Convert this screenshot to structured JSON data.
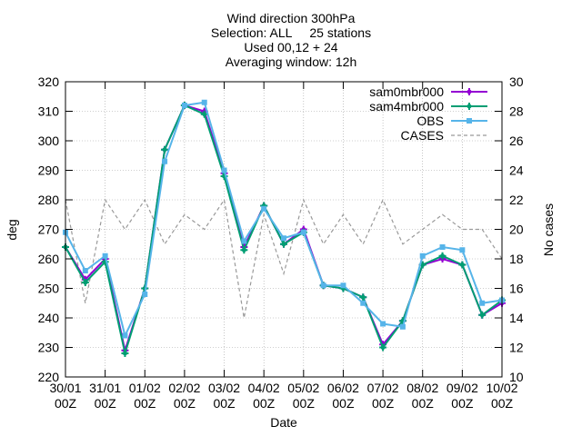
{
  "chart_data": {
    "type": "line",
    "title": [
      "Wind direction 300hPa",
      "Selection: ALL     25 stations",
      "Used 00,12 + 24",
      "Averaging window: 12h"
    ],
    "xlabel": "Date",
    "ylabel": "deg",
    "y2label": "No cases",
    "ylim": [
      220,
      320
    ],
    "y2lim": [
      10,
      30
    ],
    "yticks": [
      220,
      230,
      240,
      250,
      260,
      270,
      280,
      290,
      300,
      310,
      320
    ],
    "y2ticks": [
      10,
      12,
      14,
      16,
      18,
      20,
      22,
      24,
      26,
      28,
      30
    ],
    "xticks": [
      {
        "day": 0,
        "line1": "30/01",
        "line2": "00Z"
      },
      {
        "day": 1,
        "line1": "31/01",
        "line2": "00Z"
      },
      {
        "day": 2,
        "line1": "01/02",
        "line2": "00Z"
      },
      {
        "day": 3,
        "line1": "02/02",
        "line2": "00Z"
      },
      {
        "day": 4,
        "line1": "03/02",
        "line2": "00Z"
      },
      {
        "day": 5,
        "line1": "04/02",
        "line2": "00Z"
      },
      {
        "day": 6,
        "line1": "05/02",
        "line2": "00Z"
      },
      {
        "day": 7,
        "line1": "06/02",
        "line2": "00Z"
      },
      {
        "day": 8,
        "line1": "07/02",
        "line2": "00Z"
      },
      {
        "day": 9,
        "line1": "08/02",
        "line2": "00Z"
      },
      {
        "day": 10,
        "line1": "09/02",
        "line2": "00Z"
      },
      {
        "day": 11,
        "line1": "10/02",
        "line2": "00Z"
      }
    ],
    "grid": true,
    "legend_position": "top-right",
    "x": [
      0,
      0.5,
      1,
      1.5,
      2,
      2.5,
      3,
      3.5,
      4,
      4.5,
      5,
      5.5,
      6,
      6.5,
      7,
      7.5,
      8,
      8.5,
      9,
      9.5,
      10,
      10.5,
      11
    ],
    "series": [
      {
        "name": "sam0mbr000",
        "color": "#9400d3",
        "axis": "y",
        "marker": "plus",
        "dash": false,
        "values": [
          264,
          253,
          260,
          229,
          250,
          297,
          312,
          310,
          289,
          264,
          278,
          265,
          270,
          251,
          250,
          247,
          231,
          239,
          258,
          260,
          258,
          241,
          245
        ]
      },
      {
        "name": "sam4mbr000",
        "color": "#009e73",
        "axis": "y",
        "marker": "plus",
        "dash": false,
        "values": [
          264,
          252,
          259,
          228,
          250,
          297,
          312,
          309,
          288,
          263,
          278,
          265,
          269,
          251,
          250,
          247,
          230,
          239,
          258,
          261,
          258,
          241,
          246
        ]
      },
      {
        "name": "OBS",
        "color": "#56b4e9",
        "axis": "y",
        "marker": "square",
        "dash": false,
        "values": [
          269,
          256,
          261,
          234,
          248,
          293,
          312,
          313,
          290,
          266,
          277,
          267,
          269,
          251,
          251,
          245,
          238,
          237,
          261,
          264,
          263,
          245,
          246
        ]
      },
      {
        "name": "CASES",
        "color": "#999999",
        "axis": "y2",
        "marker": "none",
        "dash": true,
        "values": [
          22,
          15,
          22,
          20,
          22,
          19,
          21,
          20,
          22,
          14,
          21,
          17,
          22,
          19,
          21,
          19,
          22,
          19,
          20,
          21,
          20,
          20,
          18
        ]
      }
    ]
  }
}
